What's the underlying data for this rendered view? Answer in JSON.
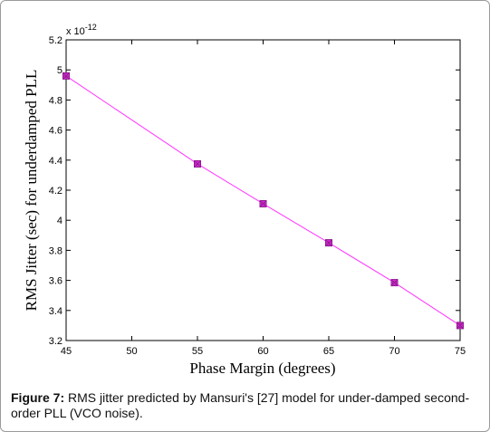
{
  "chart_data": {
    "type": "line",
    "xlabel": "Phase Margin (degrees)",
    "ylabel": "RMS Jitter (sec) for underdamped PLL",
    "exponent_label": "x 10",
    "exponent_power": "-12",
    "xlim": [
      45,
      75
    ],
    "ylim": [
      3.2,
      5.2
    ],
    "xticks": [
      "45",
      "50",
      "55",
      "60",
      "65",
      "70",
      "75"
    ],
    "yticks": [
      "3.2",
      "3.4",
      "3.6",
      "3.8",
      "4",
      "4.2",
      "4.4",
      "4.6",
      "4.8",
      "5",
      "5.2"
    ],
    "grid": false,
    "series": [
      {
        "color": "#ff33ff",
        "marker_color": "#8b1a8b",
        "x": [
          45,
          55,
          60,
          65,
          70,
          75
        ],
        "y": [
          4.96,
          4.375,
          4.11,
          3.85,
          3.585,
          3.3
        ]
      }
    ]
  },
  "caption": {
    "label": "Figure 7:",
    "text": " RMS jitter predicted by Mansuri's [27] model for under-damped second-order PLL (VCO noise)."
  }
}
